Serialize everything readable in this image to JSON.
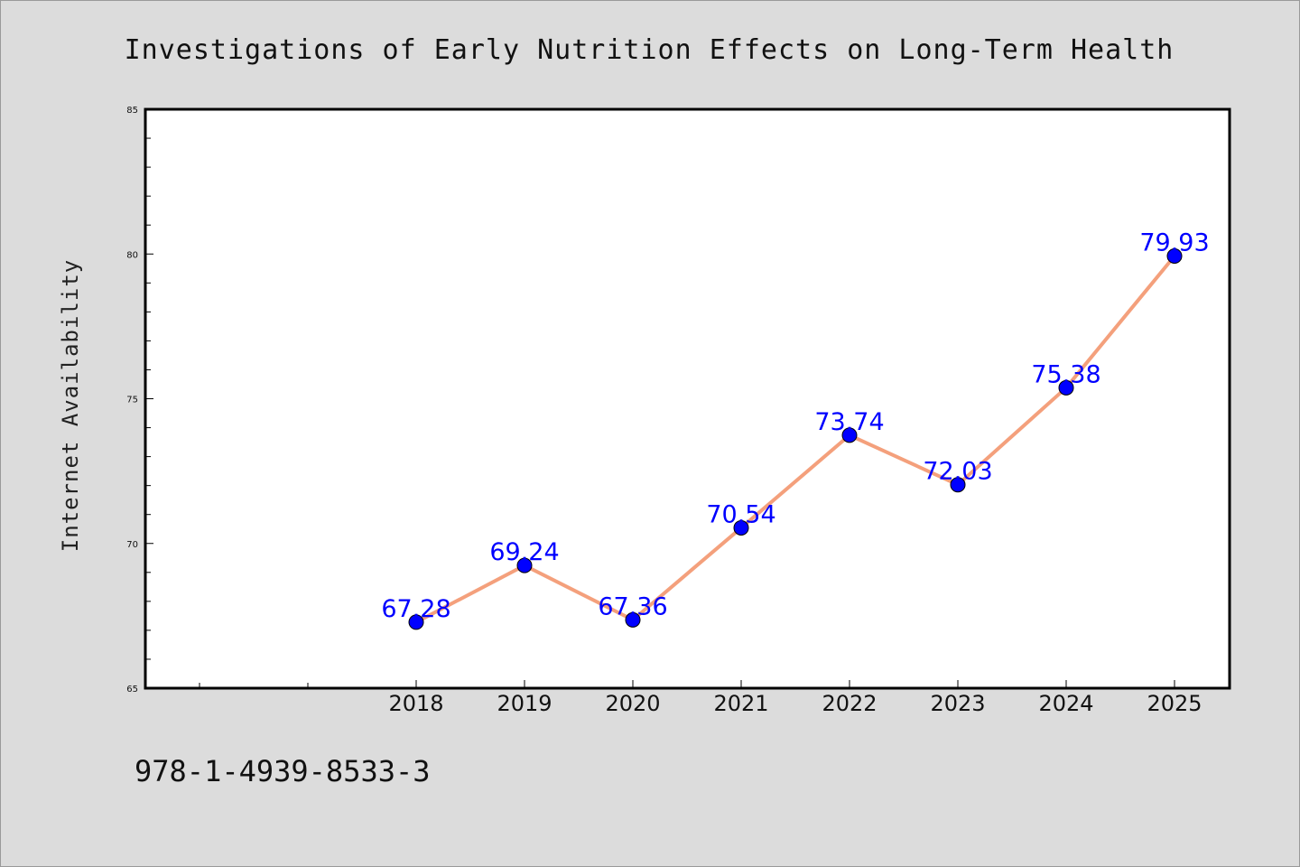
{
  "chart_data": {
    "type": "line",
    "title": "Investigations of Early Nutrition Effects on Long-Term Health",
    "xlabel": "",
    "ylabel": "Internet Availability",
    "categories": [
      "2018",
      "2019",
      "2020",
      "2021",
      "2022",
      "2023",
      "2024",
      "2025"
    ],
    "series": [
      {
        "values": [
          67.28,
          69.24,
          67.36,
          70.54,
          73.74,
          72.03,
          75.38,
          79.93
        ]
      }
    ],
    "data_labels": [
      "67.28",
      "69.24",
      "67.36",
      "70.54",
      "73.74",
      "72.03",
      "75.38",
      "79.93"
    ],
    "ylim": [
      65,
      85
    ],
    "yticks": [
      "65",
      "70",
      "75",
      "80",
      "85"
    ],
    "grid": false,
    "line_color": "#f4a07c",
    "marker_color": "#0000ff",
    "label_color": "#0000ff"
  },
  "footer": {
    "isbn": "978-1-4939-8533-3"
  }
}
